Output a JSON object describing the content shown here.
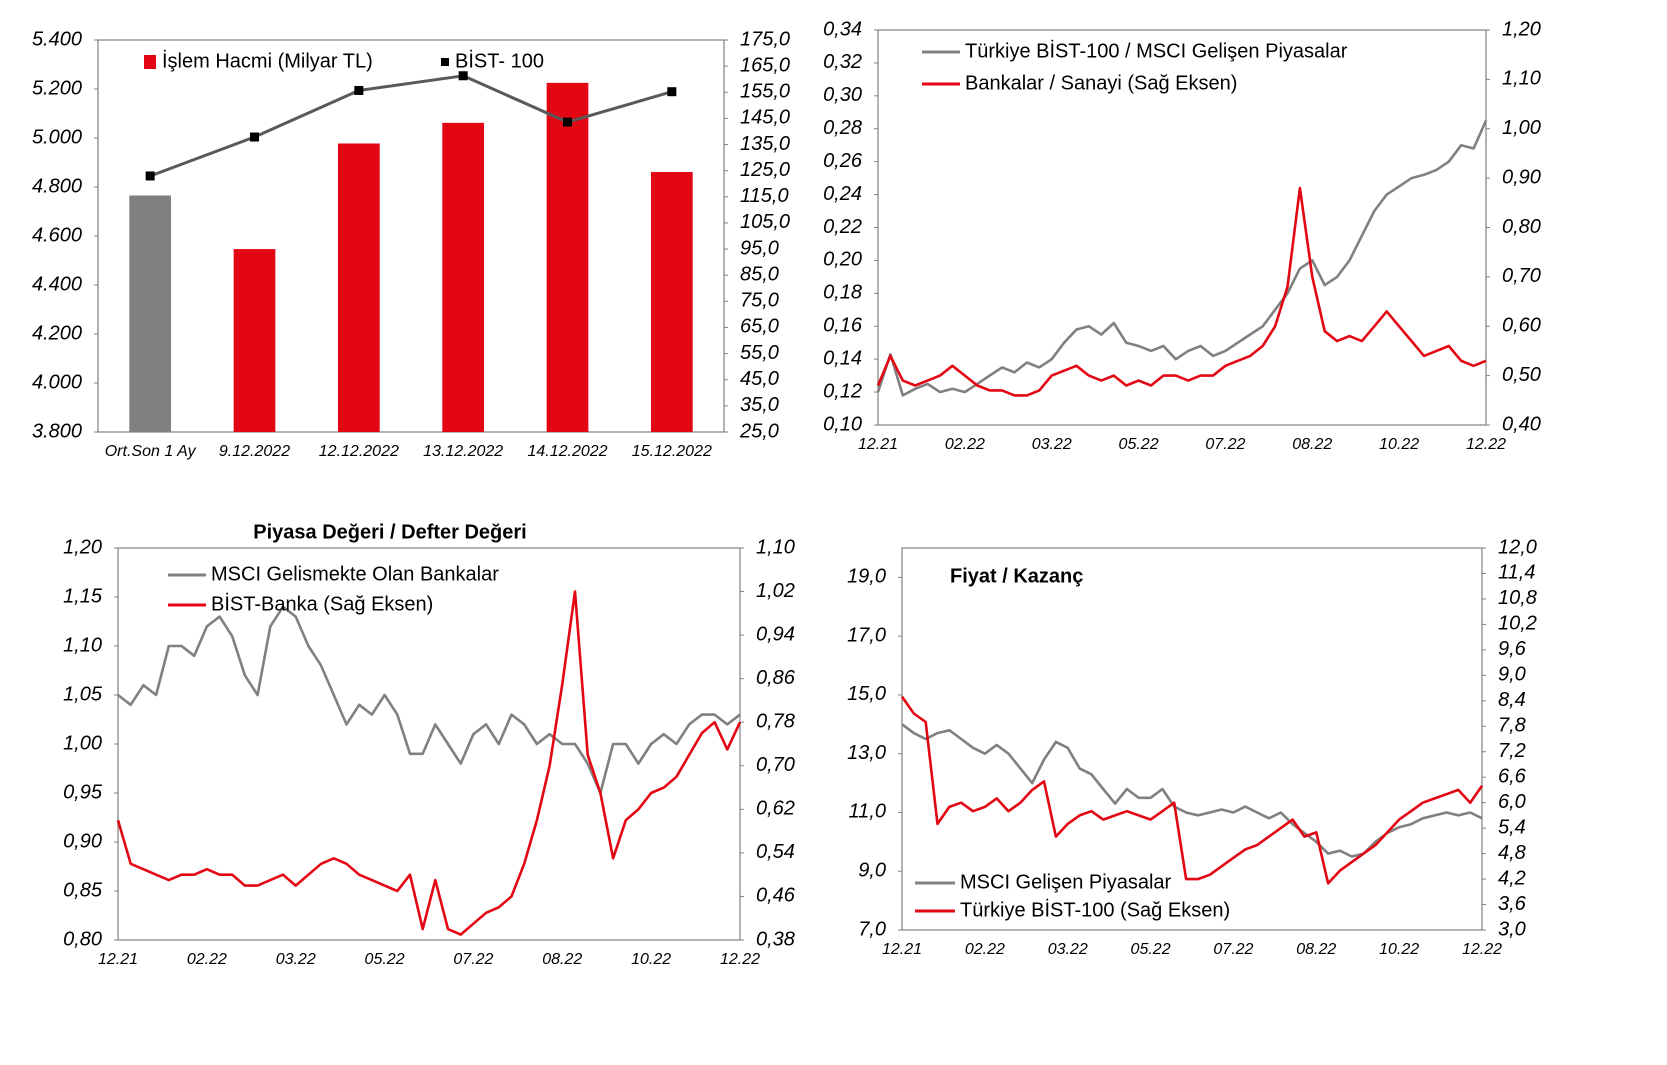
{
  "chart_data": [
    {
      "type": "bar",
      "categories": [
        "Ort.Son 1 Ay",
        "9.12.2022",
        "12.12.2022",
        "13.12.2022",
        "14.12.2022",
        "15.12.2022"
      ],
      "series": [
        {
          "name": "İşlem Hacmi (Milyar TL)",
          "type": "bar",
          "axis": "y2",
          "color": "#e30613",
          "colors": [
            "#808080",
            "#e30613",
            "#e30613",
            "#e30613",
            "#e30613",
            "#e30613"
          ],
          "values": [
            115.5,
            95,
            135.4,
            143.3,
            158.6,
            124.5
          ]
        },
        {
          "name": "BİST- 100",
          "type": "line",
          "color": "#595959",
          "marker_color": "#000000",
          "values": [
            4845,
            5004,
            5194,
            5254,
            5065,
            5189
          ]
        }
      ],
      "ylim": [
        3800,
        5400
      ],
      "yticks": [
        {
          "value": 3800,
          "label": "3.800"
        },
        {
          "value": 4000,
          "label": "4.000"
        },
        {
          "value": 4200,
          "label": "4.200"
        },
        {
          "value": 4400,
          "label": "4.400"
        },
        {
          "value": 4600,
          "label": "4.600"
        },
        {
          "value": 4800,
          "label": "4.800"
        },
        {
          "value": 5000,
          "label": "5.000"
        },
        {
          "value": 5200,
          "label": "5.200"
        },
        {
          "value": 5400,
          "label": "5.400"
        }
      ],
      "y2lim": [
        25,
        175
      ],
      "y2ticks": [
        {
          "value": 25,
          "label": "25,0"
        },
        {
          "value": 35,
          "label": "35,0"
        },
        {
          "value": 45,
          "label": "45,0"
        },
        {
          "value": 55,
          "label": "55,0"
        },
        {
          "value": 65,
          "label": "65,0"
        },
        {
          "value": 75,
          "label": "75,0"
        },
        {
          "value": 85,
          "label": "85,0"
        },
        {
          "value": 95,
          "label": "95,0"
        },
        {
          "value": 105,
          "label": "105,0"
        },
        {
          "value": 115,
          "label": "115,0"
        },
        {
          "value": 125,
          "label": "125,0"
        },
        {
          "value": 135,
          "label": "135,0"
        },
        {
          "value": 145,
          "label": "145,0"
        },
        {
          "value": 155,
          "label": "155,0"
        },
        {
          "value": 165,
          "label": "165,0"
        },
        {
          "value": 175,
          "label": "175,0"
        }
      ],
      "y2_color": "#e30613"
    },
    {
      "type": "line",
      "categories": [
        "12.21",
        null,
        null,
        null,
        null,
        null,
        null,
        "02.22",
        null,
        null,
        null,
        null,
        null,
        null,
        "03.22",
        null,
        null,
        null,
        null,
        null,
        null,
        "05.22",
        null,
        null,
        null,
        null,
        null,
        null,
        "07.22",
        null,
        null,
        null,
        null,
        null,
        null,
        "08.22",
        null,
        null,
        null,
        null,
        null,
        null,
        "10.22",
        null,
        null,
        null,
        null,
        null,
        null,
        "12.22"
      ],
      "series": [
        {
          "name": "Türkiye BİST-100 / MSCI Gelişen Piyasalar",
          "color": "#808080",
          "values": [
            0.12,
            0.143,
            0.118,
            0.122,
            0.125,
            0.12,
            0.122,
            0.12,
            0.125,
            0.13,
            0.135,
            0.132,
            0.138,
            0.135,
            0.14,
            0.15,
            0.158,
            0.16,
            0.155,
            0.162,
            0.15,
            0.148,
            0.145,
            0.148,
            0.14,
            0.145,
            0.148,
            0.142,
            0.145,
            0.15,
            0.155,
            0.16,
            0.17,
            0.18,
            0.195,
            0.2,
            0.185,
            0.19,
            0.2,
            0.215,
            0.23,
            0.24,
            0.245,
            0.25,
            0.252,
            0.255,
            0.26,
            0.27,
            0.268,
            0.285
          ]
        },
        {
          "name": "Bankalar / Sanayi (Sağ Eksen)",
          "color": "#e30613",
          "axis": "y2",
          "values": [
            0.48,
            0.54,
            0.49,
            0.48,
            0.49,
            0.5,
            0.52,
            0.5,
            0.48,
            0.47,
            0.47,
            0.46,
            0.46,
            0.47,
            0.5,
            0.51,
            0.52,
            0.5,
            0.49,
            0.5,
            0.48,
            0.49,
            0.48,
            0.5,
            0.5,
            0.49,
            0.5,
            0.5,
            0.52,
            0.53,
            0.54,
            0.56,
            0.6,
            0.68,
            0.88,
            0.7,
            0.59,
            0.57,
            0.58,
            0.57,
            0.6,
            0.63,
            0.6,
            0.57,
            0.54,
            0.55,
            0.56,
            0.53,
            0.52,
            0.53
          ]
        }
      ],
      "ylim": [
        0.1,
        0.34
      ],
      "yticks": [
        {
          "value": 0.1,
          "label": "0,10"
        },
        {
          "value": 0.12,
          "label": "0,12"
        },
        {
          "value": 0.14,
          "label": "0,14"
        },
        {
          "value": 0.16,
          "label": "0,16"
        },
        {
          "value": 0.18,
          "label": "0,18"
        },
        {
          "value": 0.2,
          "label": "0,20"
        },
        {
          "value": 0.22,
          "label": "0,22"
        },
        {
          "value": 0.24,
          "label": "0,24"
        },
        {
          "value": 0.26,
          "label": "0,26"
        },
        {
          "value": 0.28,
          "label": "0,28"
        },
        {
          "value": 0.3,
          "label": "0,30"
        },
        {
          "value": 0.32,
          "label": "0,32"
        },
        {
          "value": 0.34,
          "label": "0,34"
        }
      ],
      "y2lim": [
        0.4,
        1.2
      ],
      "y2ticks": [
        {
          "value": 0.4,
          "label": "0,40"
        },
        {
          "value": 0.5,
          "label": "0,50"
        },
        {
          "value": 0.6,
          "label": "0,60"
        },
        {
          "value": 0.7,
          "label": "0,70"
        },
        {
          "value": 0.8,
          "label": "0,80"
        },
        {
          "value": 0.9,
          "label": "0,90"
        },
        {
          "value": 1.0,
          "label": "1,00"
        },
        {
          "value": 1.1,
          "label": "1,10"
        },
        {
          "value": 1.2,
          "label": "1,20"
        }
      ],
      "y2_color": "#e30613"
    },
    {
      "type": "line",
      "title": "Piyasa Değeri / Defter Değeri",
      "categories": [
        "12.21",
        null,
        null,
        null,
        null,
        null,
        null,
        "02.22",
        null,
        null,
        null,
        null,
        null,
        null,
        "03.22",
        null,
        null,
        null,
        null,
        null,
        null,
        "05.22",
        null,
        null,
        null,
        null,
        null,
        null,
        "07.22",
        null,
        null,
        null,
        null,
        null,
        null,
        "08.22",
        null,
        null,
        null,
        null,
        null,
        null,
        "10.22",
        null,
        null,
        null,
        null,
        null,
        null,
        "12.22"
      ],
      "series": [
        {
          "name": "MSCI Gelismekte Olan Bankalar",
          "color": "#808080",
          "values": [
            1.05,
            1.04,
            1.06,
            1.05,
            1.1,
            1.1,
            1.09,
            1.12,
            1.13,
            1.11,
            1.07,
            1.05,
            1.12,
            1.14,
            1.13,
            1.1,
            1.08,
            1.05,
            1.02,
            1.04,
            1.03,
            1.05,
            1.03,
            0.99,
            0.99,
            1.02,
            1.0,
            0.98,
            1.01,
            1.02,
            1.0,
            1.03,
            1.02,
            1.0,
            1.01,
            1.0,
            1.0,
            0.98,
            0.95,
            1.0,
            1.0,
            0.98,
            1.0,
            1.01,
            1.0,
            1.02,
            1.03,
            1.03,
            1.02,
            1.03
          ]
        },
        {
          "name": "BİST-Banka (Sağ Eksen)",
          "color": "#e30613",
          "axis": "y2",
          "values": [
            0.6,
            0.52,
            0.51,
            0.5,
            0.49,
            0.5,
            0.5,
            0.51,
            0.5,
            0.5,
            0.48,
            0.48,
            0.49,
            0.5,
            0.48,
            0.5,
            0.52,
            0.53,
            0.52,
            0.5,
            0.49,
            0.48,
            0.47,
            0.5,
            0.4,
            0.49,
            0.4,
            0.39,
            0.41,
            0.43,
            0.44,
            0.46,
            0.52,
            0.6,
            0.7,
            0.85,
            1.02,
            0.72,
            0.65,
            0.53,
            0.6,
            0.62,
            0.65,
            0.66,
            0.68,
            0.72,
            0.76,
            0.78,
            0.73,
            0.78
          ]
        }
      ],
      "ylim": [
        0.8,
        1.2
      ],
      "yticks": [
        {
          "value": 0.8,
          "label": "0,80"
        },
        {
          "value": 0.85,
          "label": "0,85"
        },
        {
          "value": 0.9,
          "label": "0,90"
        },
        {
          "value": 0.95,
          "label": "0,95"
        },
        {
          "value": 1.0,
          "label": "1,00"
        },
        {
          "value": 1.05,
          "label": "1,05"
        },
        {
          "value": 1.1,
          "label": "1,10"
        },
        {
          "value": 1.15,
          "label": "1,15"
        },
        {
          "value": 1.2,
          "label": "1,20"
        }
      ],
      "y2lim": [
        0.38,
        1.1
      ],
      "y2ticks": [
        {
          "value": 0.38,
          "label": "0,38"
        },
        {
          "value": 0.46,
          "label": "0,46"
        },
        {
          "value": 0.54,
          "label": "0,54"
        },
        {
          "value": 0.62,
          "label": "0,62"
        },
        {
          "value": 0.7,
          "label": "0,70"
        },
        {
          "value": 0.78,
          "label": "0,78"
        },
        {
          "value": 0.86,
          "label": "0,86"
        },
        {
          "value": 0.94,
          "label": "0,94"
        },
        {
          "value": 1.02,
          "label": "1,02"
        },
        {
          "value": 1.1,
          "label": "1,10"
        }
      ],
      "y2_color": "#e30613"
    },
    {
      "type": "line",
      "title": "Fiyat / Kazanç",
      "categories": [
        "12.21",
        null,
        null,
        null,
        null,
        null,
        null,
        "02.22",
        null,
        null,
        null,
        null,
        null,
        null,
        "03.22",
        null,
        null,
        null,
        null,
        null,
        null,
        "05.22",
        null,
        null,
        null,
        null,
        null,
        null,
        "07.22",
        null,
        null,
        null,
        null,
        null,
        null,
        "08.22",
        null,
        null,
        null,
        null,
        null,
        null,
        "10.22",
        null,
        null,
        null,
        null,
        null,
        null,
        "12.22"
      ],
      "series": [
        {
          "name": "MSCI Gelişen Piyasalar",
          "color": "#808080",
          "values": [
            14,
            13.7,
            13.5,
            13.7,
            13.8,
            13.5,
            13.2,
            13.0,
            13.3,
            13.0,
            12.5,
            12.0,
            12.8,
            13.4,
            13.2,
            12.5,
            12.3,
            11.8,
            11.3,
            11.8,
            11.5,
            11.5,
            11.8,
            11.2,
            11.0,
            10.9,
            11.0,
            11.1,
            11.0,
            11.2,
            11.0,
            10.8,
            11.0,
            10.6,
            10.3,
            10.0,
            9.6,
            9.7,
            9.5,
            9.6,
            10.0,
            10.3,
            10.5,
            10.6,
            10.8,
            10.9,
            11.0,
            10.9,
            11.0,
            10.8
          ]
        },
        {
          "name": "Türkiye BİST-100 (Sağ Eksen)",
          "color": "#e30613",
          "axis": "y2",
          "values": [
            8.5,
            8.1,
            7.9,
            5.5,
            5.9,
            6.0,
            5.8,
            5.9,
            6.1,
            5.8,
            6.0,
            6.3,
            6.5,
            5.2,
            5.5,
            5.7,
            5.8,
            5.6,
            5.7,
            5.8,
            5.7,
            5.6,
            5.8,
            6.0,
            4.2,
            4.2,
            4.3,
            4.5,
            4.7,
            4.9,
            5.0,
            5.2,
            5.4,
            5.6,
            5.2,
            5.3,
            4.1,
            4.4,
            4.6,
            4.8,
            5.0,
            5.3,
            5.6,
            5.8,
            6.0,
            6.1,
            6.2,
            6.3,
            6.0,
            6.4
          ]
        }
      ],
      "ylim": [
        7,
        20
      ],
      "yticks": [
        {
          "value": 7,
          "label": "7,0"
        },
        {
          "value": 9,
          "label": "9,0"
        },
        {
          "value": 11,
          "label": "11,0"
        },
        {
          "value": 13,
          "label": "13,0"
        },
        {
          "value": 15,
          "label": "15,0"
        },
        {
          "value": 17,
          "label": "17,0"
        },
        {
          "value": 19,
          "label": "19,0"
        }
      ],
      "y2lim": [
        3,
        12
      ],
      "y2ticks": [
        {
          "value": 3.0,
          "label": "3,0"
        },
        {
          "value": 3.6,
          "label": "3,6"
        },
        {
          "value": 4.2,
          "label": "4,2"
        },
        {
          "value": 4.8,
          "label": "4,8"
        },
        {
          "value": 5.4,
          "label": "5,4"
        },
        {
          "value": 6.0,
          "label": "6,0"
        },
        {
          "value": 6.6,
          "label": "6,6"
        },
        {
          "value": 7.2,
          "label": "7,2"
        },
        {
          "value": 7.8,
          "label": "7,8"
        },
        {
          "value": 8.4,
          "label": "8,4"
        },
        {
          "value": 9.0,
          "label": "9,0"
        },
        {
          "value": 9.6,
          "label": "9,6"
        },
        {
          "value": 10.2,
          "label": "10,2"
        },
        {
          "value": 10.8,
          "label": "10,8"
        },
        {
          "value": 11.4,
          "label": "11,4"
        },
        {
          "value": 12.0,
          "label": "12,0"
        }
      ],
      "y2_color": "#e30613"
    }
  ]
}
